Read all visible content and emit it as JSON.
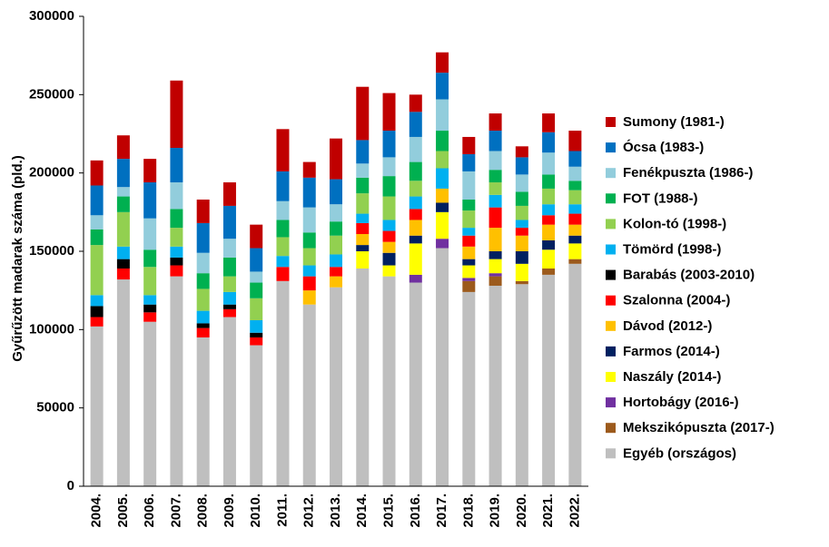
{
  "chart_data": {
    "type": "stacked_bar",
    "y_label": "Gyűrűzött madarak száma (pld.)",
    "categories": [
      "2004.",
      "2005.",
      "2006.",
      "2007.",
      "2008.",
      "2009.",
      "2010.",
      "2011.",
      "2012.",
      "2013.",
      "2014.",
      "2015.",
      "2016.",
      "2017.",
      "2018.",
      "2019.",
      "2020.",
      "2021.",
      "2022."
    ],
    "ylim": [
      0,
      300000
    ],
    "yticks": [
      0,
      50000,
      100000,
      150000,
      200000,
      250000,
      300000
    ],
    "grid": false,
    "legend": "right",
    "series": [
      {
        "name": "Sumony (1981-)",
        "color": "#c00000",
        "values": [
          16000,
          15000,
          15000,
          43000,
          15000,
          15000,
          15000,
          27000,
          10000,
          26000,
          34000,
          24000,
          11000,
          13000,
          11000,
          11000,
          7000,
          12000,
          13000
        ]
      },
      {
        "name": "Ócsa (1983-)",
        "color": "#0070c0",
        "values": [
          19000,
          18000,
          23000,
          22000,
          19000,
          21000,
          15000,
          19000,
          19000,
          16000,
          15000,
          17000,
          16000,
          17000,
          11000,
          13000,
          11000,
          13000,
          10000
        ]
      },
      {
        "name": "Fenékpuszta (1986-)",
        "color": "#92cddc",
        "values": [
          9000,
          6000,
          20000,
          17000,
          13000,
          12000,
          7000,
          12000,
          16000,
          11000,
          9000,
          12000,
          16000,
          20000,
          18000,
          12000,
          11000,
          14000,
          9000
        ]
      },
      {
        "name": "FOT (1988-)",
        "color": "#00b050",
        "values": [
          10000,
          10000,
          11000,
          12000,
          10000,
          12000,
          10000,
          11000,
          10000,
          9000,
          10000,
          13000,
          12000,
          13000,
          7000,
          8000,
          9000,
          9000,
          6000
        ]
      },
      {
        "name": "Kolon-tó (1998-)",
        "color": "#92d050",
        "values": [
          32000,
          22000,
          18000,
          12000,
          14000,
          10000,
          14000,
          12000,
          11000,
          12000,
          13000,
          15000,
          10000,
          11000,
          11000,
          8000,
          9000,
          10000,
          9000
        ]
      },
      {
        "name": "Tömörd (1998-)",
        "color": "#00b0f0",
        "values": [
          7000,
          8000,
          6000,
          7000,
          8000,
          8000,
          8000,
          7000,
          7000,
          8000,
          6000,
          7000,
          8000,
          13000,
          5000,
          8000,
          5000,
          7000,
          6000
        ]
      },
      {
        "name": "Barabás (2003-2010)",
        "color": "#000000",
        "values": [
          7000,
          6000,
          5000,
          5000,
          3000,
          3000,
          3000,
          0,
          0,
          0,
          0,
          0,
          0,
          0,
          0,
          0,
          0,
          0,
          0
        ]
      },
      {
        "name": "Szalonna (2004-)",
        "color": "#ff0000",
        "values": [
          6000,
          7000,
          6000,
          7000,
          6000,
          5000,
          5000,
          9000,
          9000,
          6000,
          7000,
          7000,
          7000,
          0,
          7000,
          13000,
          5000,
          6000,
          7000
        ]
      },
      {
        "name": "Dávod (2012-)",
        "color": "#ffc000",
        "values": [
          0,
          0,
          0,
          0,
          0,
          0,
          0,
          0,
          9000,
          7000,
          7000,
          7000,
          10000,
          9000,
          8000,
          15000,
          10000,
          10000,
          7000
        ]
      },
      {
        "name": "Farmos (2014-)",
        "color": "#002060",
        "values": [
          0,
          0,
          0,
          0,
          0,
          0,
          0,
          0,
          0,
          0,
          4000,
          8000,
          5000,
          6000,
          4000,
          5000,
          8000,
          6000,
          5000
        ]
      },
      {
        "name": "Naszály (2014-)",
        "color": "#ffff00",
        "values": [
          0,
          0,
          0,
          0,
          0,
          0,
          0,
          0,
          0,
          0,
          11000,
          7000,
          20000,
          17000,
          8000,
          9000,
          11000,
          12000,
          10000
        ]
      },
      {
        "name": "Hortobágy (2016-)",
        "color": "#7030a0",
        "values": [
          0,
          0,
          0,
          0,
          0,
          0,
          0,
          0,
          0,
          0,
          0,
          0,
          5000,
          6000,
          2000,
          2000,
          0,
          0,
          0
        ]
      },
      {
        "name": "Mekszikópuszta (2017-)",
        "color": "#9c5a1c",
        "values": [
          0,
          0,
          0,
          0,
          0,
          0,
          0,
          0,
          0,
          0,
          0,
          0,
          0,
          0,
          7000,
          6000,
          2000,
          4000,
          3000
        ]
      },
      {
        "name": "Egyéb (országos)",
        "color": "#bfbfbf",
        "values": [
          102000,
          132000,
          105000,
          134000,
          95000,
          108000,
          90000,
          131000,
          116000,
          127000,
          139000,
          134000,
          130000,
          152000,
          124000,
          128000,
          129000,
          135000,
          142000
        ]
      }
    ]
  }
}
